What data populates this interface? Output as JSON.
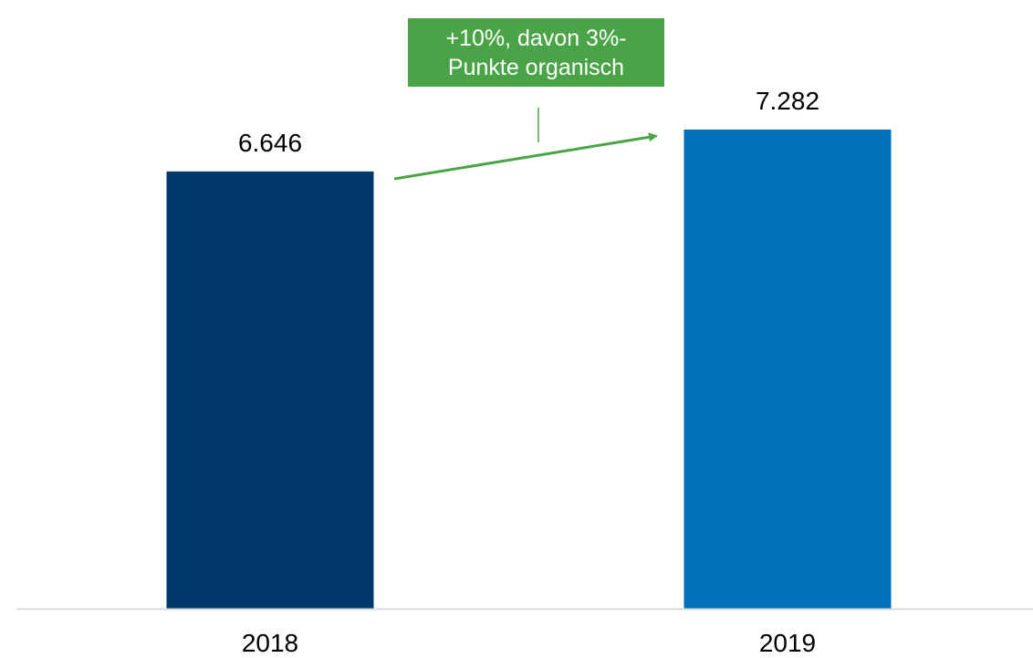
{
  "chart_data": {
    "type": "bar",
    "categories": [
      "2018",
      "2019"
    ],
    "values": [
      6646,
      7282
    ],
    "data_labels": [
      "6.646",
      "7.282"
    ],
    "bar_colors": [
      "#003869",
      "#0070ba"
    ],
    "ylim": [
      0,
      7282
    ],
    "grid": false,
    "legend": "none",
    "annotation": {
      "line1": "+10%, davon 3%-",
      "line2": "Punkte organisch",
      "color": "#4aa447"
    },
    "title": "",
    "xlabel": "",
    "ylabel": ""
  }
}
